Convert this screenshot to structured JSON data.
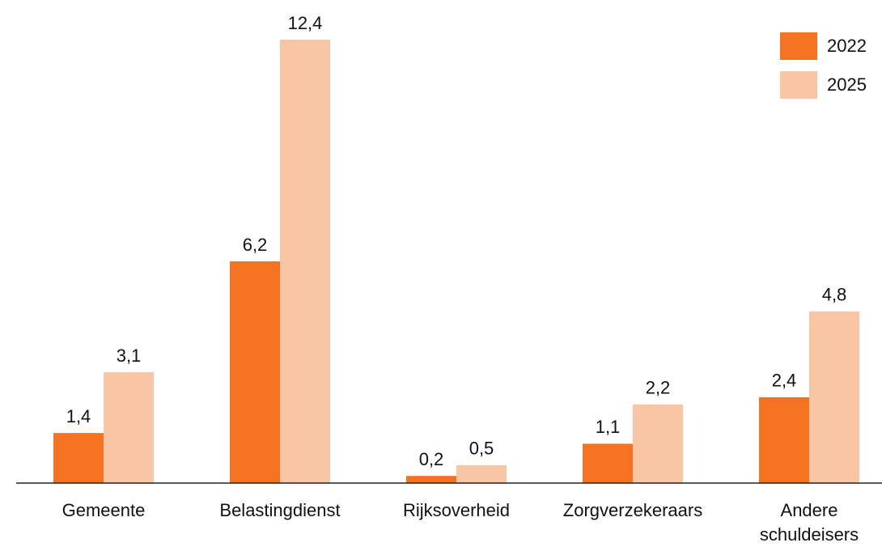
{
  "chart_data": {
    "type": "bar",
    "categories": [
      "Gemeente",
      "Belastingdienst",
      "Rijksoverheid",
      "Zorgverzekeraars",
      "Andere schuldeisers"
    ],
    "series": [
      {
        "name": "2022",
        "color": "#f37321",
        "values": [
          1.4,
          6.2,
          0.2,
          1.1,
          2.4
        ],
        "value_labels": [
          "1,4",
          "6,2",
          "0,2",
          "1,1",
          "2,4"
        ]
      },
      {
        "name": "2025",
        "color": "#f9c6a5",
        "values": [
          3.1,
          12.4,
          0.5,
          2.2,
          4.8
        ],
        "value_labels": [
          "3,1",
          "12,4",
          "0,5",
          "2,2",
          "4,8"
        ]
      }
    ],
    "legend": "upper right"
  }
}
